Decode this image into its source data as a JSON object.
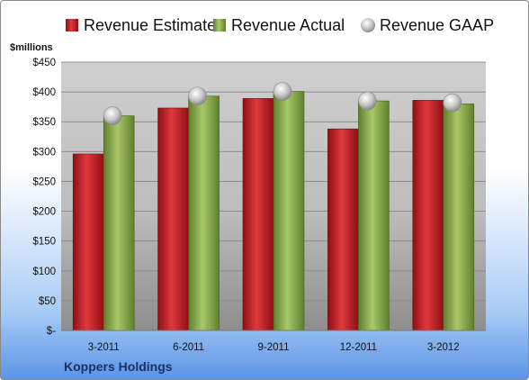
{
  "chart_data": {
    "type": "bar",
    "title": "",
    "unit_label": "$millions",
    "company": "Koppers Holdings",
    "categories": [
      "3-2011",
      "6-2011",
      "9-2011",
      "12-2011",
      "3-2012"
    ],
    "series": [
      {
        "name": "Revenue Estimate",
        "kind": "bar",
        "color": "#c0282d",
        "values": [
          296,
          373,
          389,
          338,
          386
        ]
      },
      {
        "name": "Revenue Actual",
        "kind": "bar",
        "color": "#8fb04f",
        "values": [
          360,
          393,
          401,
          385,
          380
        ]
      },
      {
        "name": "Revenue GAAP",
        "kind": "marker",
        "color": "#b8b8b8",
        "values": [
          360,
          393,
          401,
          385,
          382
        ]
      }
    ],
    "y_ticks": [
      "$-",
      "$50",
      "$100",
      "$150",
      "$200",
      "$250",
      "$300",
      "$350",
      "$400",
      "$450"
    ],
    "ylim": [
      0,
      450
    ],
    "grid": true,
    "legend_position": "top"
  }
}
